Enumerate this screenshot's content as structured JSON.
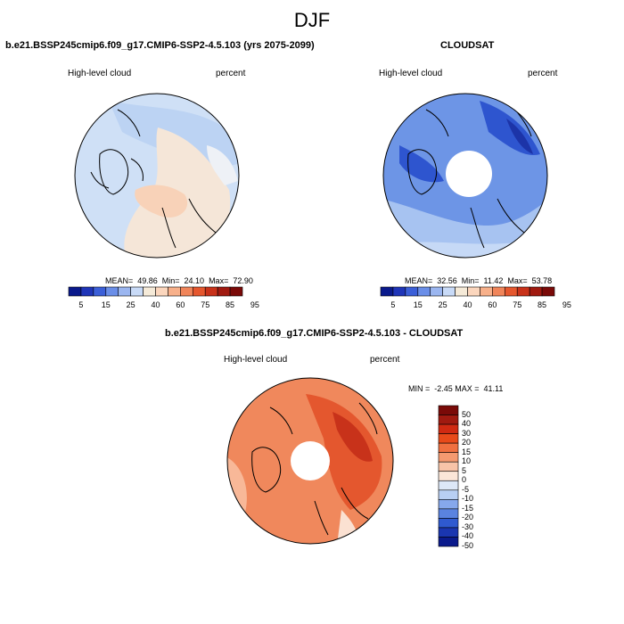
{
  "season": "DJF",
  "panels": [
    {
      "title": "b.e21.BSSP245cmip6.f09_g17.CMIP6-SSP2-4.5.103 (yrs 2075-2099)",
      "variable": "High-level cloud",
      "units": "percent",
      "stats": "MEAN=  49.86  Min=  24.10  Max=  72.90"
    },
    {
      "title": "CLOUDSAT",
      "variable": "High-level cloud",
      "units": "percent",
      "stats": "MEAN=  32.56  Min=  11.42  Max=  53.78"
    }
  ],
  "diff_panel": {
    "title": "b.e21.BSSP245cmip6.f09_g17.CMIP6-SSP2-4.5.103 - CLOUDSAT",
    "variable": "High-level cloud",
    "units": "percent",
    "stats": "MIN =  -2.45 MAX =  41.11"
  },
  "colorbar_abs": {
    "colors": [
      "#0a1a8c",
      "#1f35b8",
      "#3b5fd8",
      "#6a8ee8",
      "#9bb6f0",
      "#c8daf7",
      "#f5ead8",
      "#fbd6bd",
      "#f7b08a",
      "#f0855a",
      "#e5572e",
      "#c8321a",
      "#a01a10",
      "#7a0a08"
    ],
    "labels": [
      "5",
      "15",
      "25",
      "40",
      "60",
      "75",
      "85",
      "95"
    ]
  },
  "colorbar_diff": {
    "colors": [
      "#7a0a08",
      "#a01a10",
      "#d02a12",
      "#e84a1a",
      "#f07040",
      "#f59a70",
      "#f8c4a8",
      "#fbe6d8",
      "#dde8f8",
      "#b8cff3",
      "#86a8ec",
      "#5a83e0",
      "#2f5ad0",
      "#1a36b0",
      "#0a1a8c"
    ],
    "labels": [
      "50",
      "40",
      "30",
      "20",
      "15",
      "10",
      "5",
      "0",
      "-5",
      "-10",
      "-15",
      "-20",
      "-30",
      "-40",
      "-50"
    ]
  }
}
